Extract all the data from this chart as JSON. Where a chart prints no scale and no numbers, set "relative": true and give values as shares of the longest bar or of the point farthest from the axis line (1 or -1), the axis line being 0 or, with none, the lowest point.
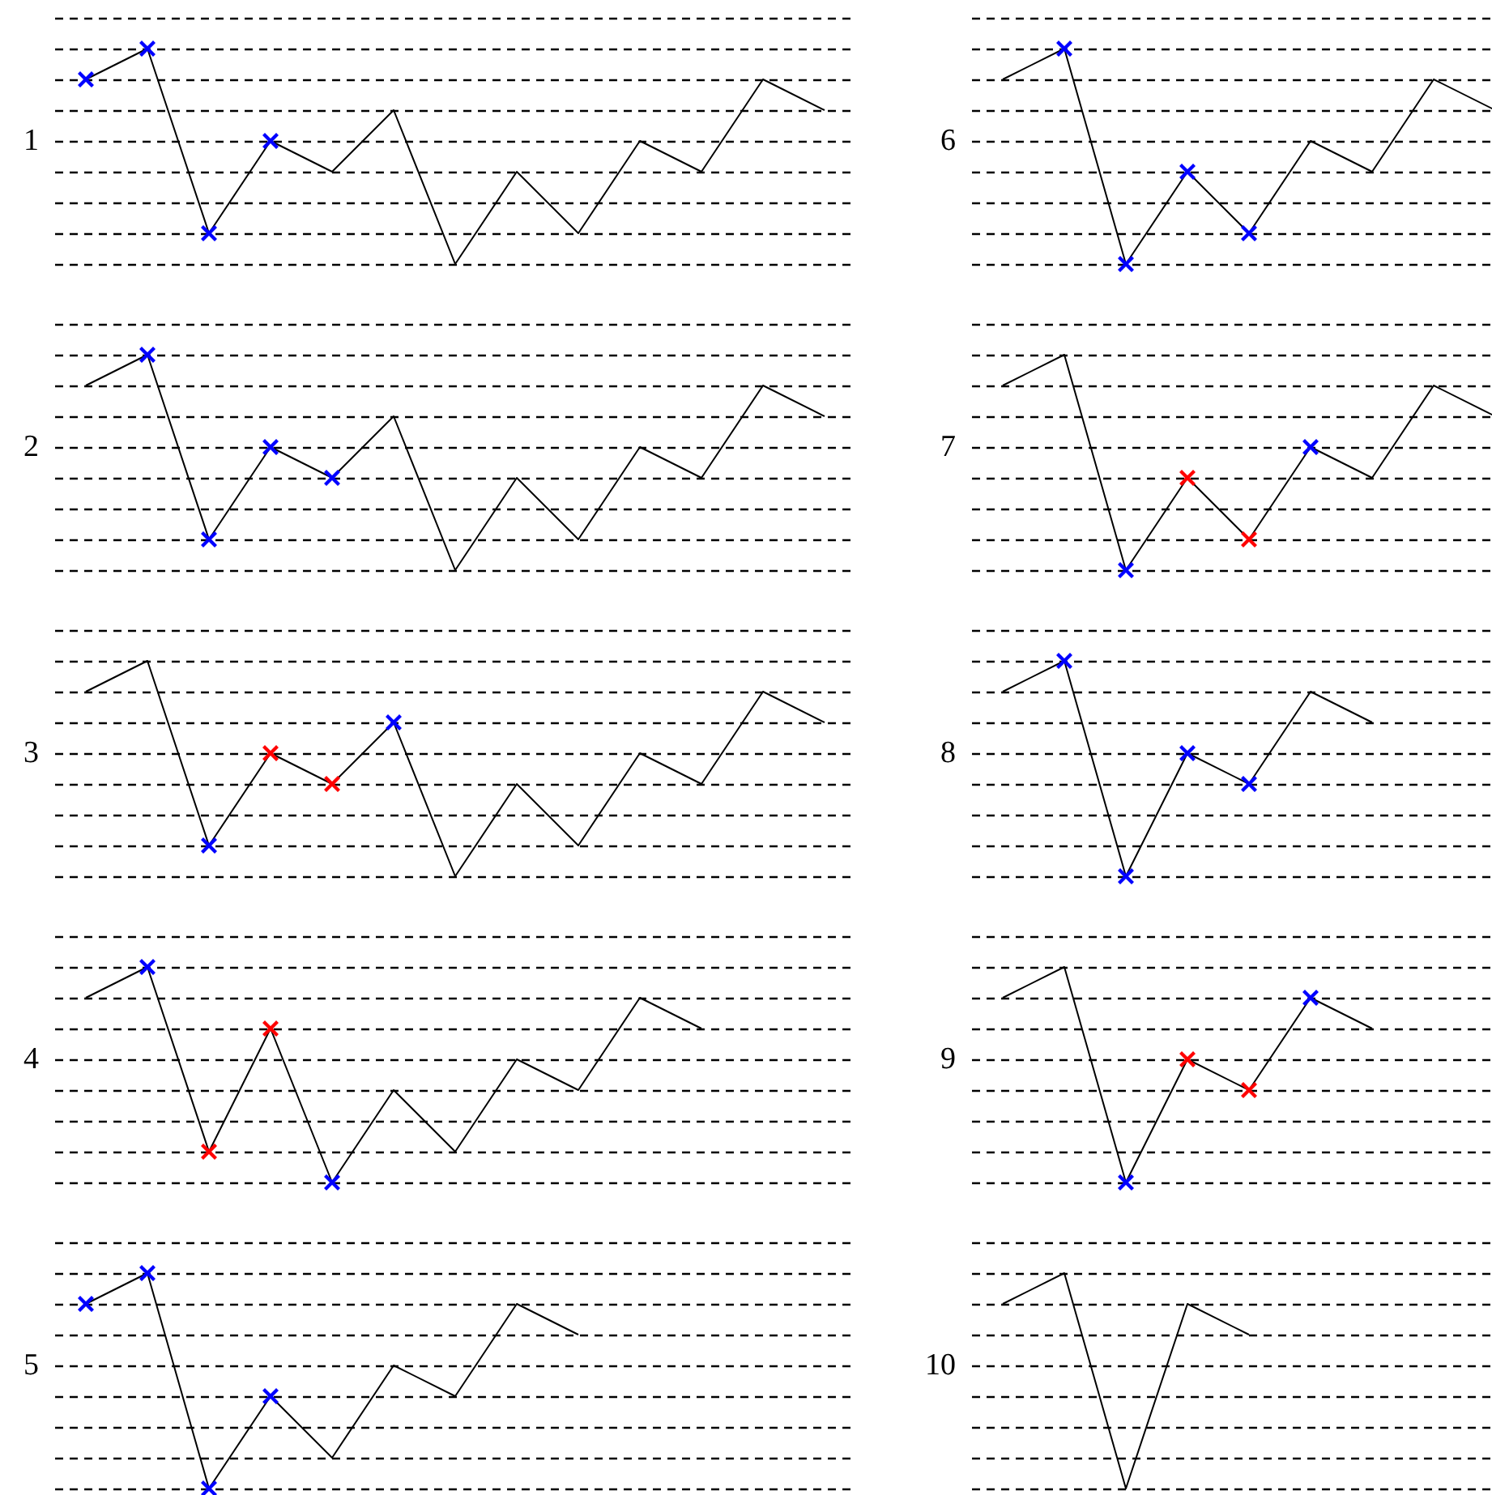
{
  "chart_data": [
    {
      "type": "line",
      "ylabel": "1",
      "relative": true,
      "grid": "y",
      "categories": [
        null,
        null,
        null,
        null,
        null,
        null,
        null,
        null,
        null,
        null,
        null,
        null,
        null
      ],
      "series": [
        {
          "color": "#000000",
          "values": [
            0.5,
            0.75,
            -0.75,
            0,
            -0.25,
            0.25,
            -1,
            -0.25,
            -0.75,
            0,
            -0.25,
            0.5,
            0.25
          ],
          "colors": [
            "#0000ff",
            "#0000ff",
            "#0000ff",
            "#0000ff",
            null,
            null,
            null,
            null,
            null,
            null,
            null,
            null,
            null
          ]
        }
      ]
    },
    {
      "type": "line",
      "ylabel": "2",
      "relative": true,
      "grid": "y",
      "categories": [
        null,
        null,
        null,
        null,
        null,
        null,
        null,
        null,
        null,
        null,
        null,
        null,
        null
      ],
      "series": [
        {
          "color": "#000000",
          "values": [
            0.5,
            0.75,
            -0.75,
            0,
            -0.25,
            0.25,
            -1,
            -0.25,
            -0.75,
            0,
            -0.25,
            0.5,
            0.25
          ],
          "colors": [
            null,
            "#0000ff",
            "#0000ff",
            "#0000ff",
            "#0000ff",
            null,
            null,
            null,
            null,
            null,
            null,
            null,
            null
          ]
        }
      ]
    },
    {
      "type": "line",
      "ylabel": "3",
      "relative": true,
      "grid": "y",
      "categories": [
        null,
        null,
        null,
        null,
        null,
        null,
        null,
        null,
        null,
        null,
        null,
        null,
        null
      ],
      "series": [
        {
          "color": "#000000",
          "values": [
            0.5,
            0.75,
            -0.75,
            0,
            -0.25,
            0.25,
            -1,
            -0.25,
            -0.75,
            0,
            -0.25,
            0.5,
            0.25
          ],
          "colors": [
            null,
            null,
            "#0000ff",
            "#ff0000",
            "#ff0000",
            "#0000ff",
            null,
            null,
            null,
            null,
            null,
            null,
            null
          ]
        }
      ]
    },
    {
      "type": "line",
      "ylabel": "4",
      "relative": true,
      "grid": "y",
      "categories": [
        null,
        null,
        null,
        null,
        null,
        null,
        null,
        null,
        null,
        null,
        null,
        null,
        null
      ],
      "series": [
        {
          "color": "#000000",
          "values": [
            0.5,
            0.75,
            -0.75,
            0.25,
            -1,
            -0.25,
            -0.75,
            0,
            -0.25,
            0.5,
            0.25,
            null,
            null
          ],
          "colors": [
            null,
            "#0000ff",
            "#ff0000",
            "#ff0000",
            "#0000ff",
            null,
            null,
            null,
            null,
            null,
            null,
            null,
            null
          ]
        }
      ]
    },
    {
      "type": "line",
      "ylabel": "5",
      "relative": true,
      "grid": "y",
      "categories": [
        null,
        null,
        null,
        null,
        null,
        null,
        null,
        null,
        null,
        null,
        null,
        null,
        null
      ],
      "series": [
        {
          "color": "#000000",
          "values": [
            0.5,
            0.75,
            -1,
            -0.25,
            -0.75,
            0,
            -0.25,
            0.5,
            0.25,
            null,
            null,
            null,
            null
          ],
          "colors": [
            "#0000ff",
            "#0000ff",
            "#0000ff",
            "#0000ff",
            null,
            null,
            null,
            null,
            null,
            null,
            null,
            null,
            null
          ]
        }
      ]
    },
    {
      "type": "line",
      "ylabel": "6",
      "relative": true,
      "grid": "y",
      "categories": [
        null,
        null,
        null,
        null,
        null,
        null,
        null,
        null,
        null,
        null,
        null,
        null,
        null
      ],
      "series": [
        {
          "color": "#000000",
          "values": [
            0.5,
            0.75,
            -1,
            -0.25,
            -0.75,
            0,
            -0.25,
            0.5,
            0.25,
            null,
            null,
            null,
            null
          ],
          "colors": [
            null,
            "#0000ff",
            "#0000ff",
            "#0000ff",
            "#0000ff",
            null,
            null,
            null,
            null,
            null,
            null,
            null,
            null
          ]
        }
      ]
    },
    {
      "type": "line",
      "ylabel": "7",
      "relative": true,
      "grid": "y",
      "categories": [
        null,
        null,
        null,
        null,
        null,
        null,
        null,
        null,
        null,
        null,
        null,
        null,
        null
      ],
      "series": [
        {
          "color": "#000000",
          "values": [
            0.5,
            0.75,
            -1,
            -0.25,
            -0.75,
            0,
            -0.25,
            0.5,
            0.25,
            null,
            null,
            null,
            null
          ],
          "colors": [
            null,
            null,
            "#0000ff",
            "#ff0000",
            "#ff0000",
            "#0000ff",
            null,
            null,
            null,
            null,
            null,
            null,
            null
          ]
        }
      ]
    },
    {
      "type": "line",
      "ylabel": "8",
      "relative": true,
      "grid": "y",
      "categories": [
        null,
        null,
        null,
        null,
        null,
        null,
        null,
        null,
        null,
        null,
        null,
        null,
        null
      ],
      "series": [
        {
          "color": "#000000",
          "values": [
            0.5,
            0.75,
            -1,
            0,
            -0.25,
            0.5,
            0.25,
            null,
            null,
            null,
            null,
            null,
            null
          ],
          "colors": [
            null,
            "#0000ff",
            "#0000ff",
            "#0000ff",
            "#0000ff",
            null,
            null,
            null,
            null,
            null,
            null,
            null,
            null
          ]
        }
      ]
    },
    {
      "type": "line",
      "ylabel": "9",
      "relative": true,
      "grid": "y",
      "categories": [
        null,
        null,
        null,
        null,
        null,
        null,
        null,
        null,
        null,
        null,
        null,
        null,
        null
      ],
      "series": [
        {
          "color": "#000000",
          "values": [
            0.5,
            0.75,
            -1,
            0,
            -0.25,
            0.5,
            0.25,
            null,
            null,
            null,
            null,
            null,
            null
          ],
          "colors": [
            null,
            null,
            "#0000ff",
            "#ff0000",
            "#ff0000",
            "#0000ff",
            null,
            null,
            null,
            null,
            null,
            null,
            null
          ]
        }
      ]
    },
    {
      "type": "line",
      "ylabel": "10",
      "relative": true,
      "grid": "y",
      "categories": [
        null,
        null,
        null,
        null,
        null,
        null,
        null,
        null,
        null,
        null,
        null,
        null,
        null
      ],
      "series": [
        {
          "color": "#000000",
          "values": [
            0.5,
            0.75,
            -1,
            0.5,
            0.25,
            null,
            null,
            null,
            null,
            null,
            null,
            null,
            null
          ]
        }
      ]
    }
  ]
}
